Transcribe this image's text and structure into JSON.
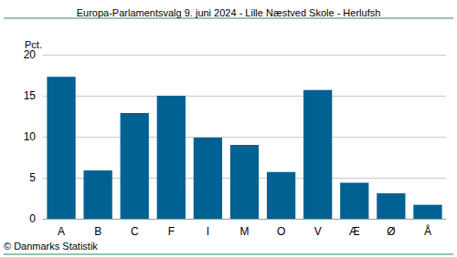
{
  "chart_data": {
    "type": "bar",
    "title": "Europa-Parlamentsvalg 9. juni 2024 - Lille Næstved Skole - Herlufsh",
    "y_label": "Pct.",
    "annotations": [
      "© Danmarks Statistik"
    ],
    "categories": [
      "A",
      "B",
      "C",
      "F",
      "I",
      "M",
      "O",
      "V",
      "Æ",
      "Ø",
      "Å"
    ],
    "values": [
      17.3,
      5.9,
      12.9,
      15.0,
      9.9,
      9.0,
      5.7,
      15.7,
      4.4,
      3.1,
      1.7
    ],
    "color": "#006192",
    "ylim": [
      0,
      20
    ],
    "yticks": [
      0,
      5,
      10,
      15,
      20
    ],
    "grid": true
  }
}
